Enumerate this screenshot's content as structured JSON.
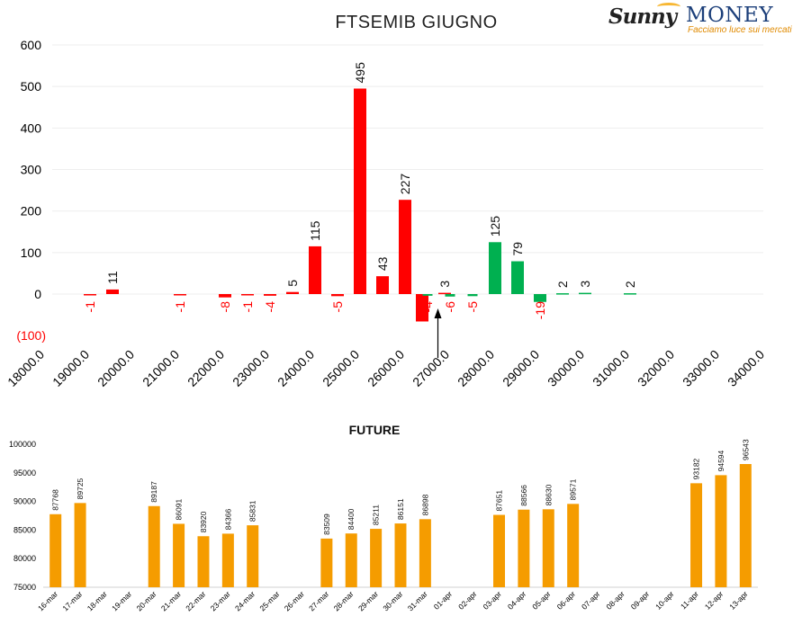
{
  "logo": {
    "brand_a": "Sunny",
    "brand_b": "MONEY",
    "tagline": "Facciamo luce sui mercati",
    "icon": "sun-icon"
  },
  "colors": {
    "negative": "#ff0000",
    "positive": "#00b050",
    "future": "#f59c00",
    "axis_text": "#000000",
    "neg_label": "#ff0000"
  },
  "chart_data": [
    {
      "type": "bar",
      "title": "FTSEMIB GIUGNO",
      "ylim": [
        -100,
        600
      ],
      "yticks": [
        600,
        500,
        400,
        300,
        200,
        100,
        0
      ],
      "ytick_neg_label": "(100)",
      "xticks": [
        "18000.0",
        "19000.0",
        "20000.0",
        "21000.0",
        "22000.0",
        "23000.0",
        "24000.0",
        "25000.0",
        "26000.0",
        "27000.0",
        "28000.0",
        "29000.0",
        "30000.0",
        "31000.0",
        "32000.0",
        "33000.0",
        "34000.0"
      ],
      "xrange": [
        18000,
        34000
      ],
      "grid": true,
      "series": [
        {
          "color": "red",
          "points": [
            {
              "x": 19000,
              "y": -1,
              "label": "-1"
            },
            {
              "x": 19500,
              "y": 11,
              "label": "11"
            },
            {
              "x": 21000,
              "y": -1,
              "label": "-1"
            },
            {
              "x": 22000,
              "y": -8,
              "label": "-8"
            },
            {
              "x": 22500,
              "y": -1,
              "label": "-1"
            },
            {
              "x": 23000,
              "y": -4,
              "label": "-4"
            },
            {
              "x": 23500,
              "y": 5,
              "label": "5"
            },
            {
              "x": 24000,
              "y": 115,
              "label": "115"
            },
            {
              "x": 24500,
              "y": -5,
              "label": "-5"
            },
            {
              "x": 25000,
              "y": 495,
              "label": "495"
            },
            {
              "x": 25500,
              "y": 43,
              "label": "43"
            },
            {
              "x": 26000,
              "y": 227,
              "label": "227"
            },
            {
              "x": 26500,
              "y": -66,
              "label": "-66"
            },
            {
              "x": 27000,
              "y": 3,
              "label": "3"
            }
          ]
        },
        {
          "color": "green",
          "points": [
            {
              "x": 26500,
              "y": -4,
              "label": "-4"
            },
            {
              "x": 27000,
              "y": -6,
              "label": "-6"
            },
            {
              "x": 27500,
              "y": -5,
              "label": "-5"
            },
            {
              "x": 28000,
              "y": 125,
              "label": "125"
            },
            {
              "x": 28500,
              "y": 79,
              "label": "79"
            },
            {
              "x": 29000,
              "y": -19,
              "label": "-19"
            },
            {
              "x": 29500,
              "y": 2,
              "label": "2"
            },
            {
              "x": 30000,
              "y": 3,
              "label": "3"
            },
            {
              "x": 31000,
              "y": 2,
              "label": "2"
            }
          ]
        }
      ],
      "annotation": {
        "type": "arrow",
        "x": 26750,
        "points_up": true
      }
    },
    {
      "type": "bar",
      "title": "FUTURE",
      "ylim": [
        75000,
        100000
      ],
      "yticks": [
        100000,
        95000,
        90000,
        85000,
        80000,
        75000
      ],
      "categories": [
        "16-mar",
        "17-mar",
        "18-mar",
        "19-mar",
        "20-mar",
        "21-mar",
        "22-mar",
        "23-mar",
        "24-mar",
        "25-mar",
        "26-mar",
        "27-mar",
        "28-mar",
        "29-mar",
        "30-mar",
        "31-mar",
        "01-apr",
        "02-apr",
        "03-apr",
        "04-apr",
        "05-apr",
        "06-apr",
        "07-apr",
        "08-apr",
        "09-apr",
        "10-apr",
        "11-apr",
        "12-apr",
        "13-apr"
      ],
      "values": [
        87768,
        89725,
        null,
        null,
        89187,
        86091,
        83920,
        84366,
        85831,
        null,
        null,
        83509,
        84400,
        85211,
        86151,
        86898,
        null,
        null,
        87651,
        88566,
        88630,
        89571,
        null,
        null,
        null,
        null,
        93182,
        94594,
        96543
      ]
    }
  ]
}
